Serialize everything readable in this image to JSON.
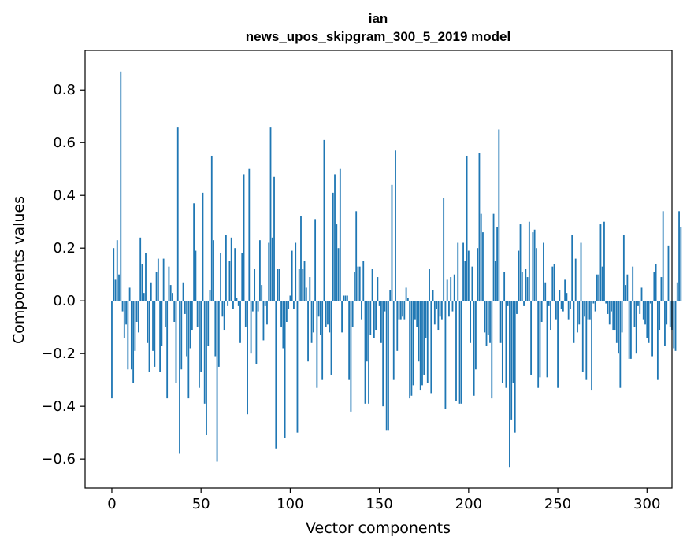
{
  "chart_data": {
    "type": "bar",
    "title_lines": [
      "ian",
      "news_upos_skipgram_300_5_2019 model"
    ],
    "xlabel": "Vector components",
    "ylabel": "Components values",
    "xlim": [
      -15,
      314
    ],
    "ylim": [
      -0.71,
      0.95
    ],
    "xticks": [
      0,
      50,
      100,
      150,
      200,
      250,
      300
    ],
    "yticks": [
      -0.6,
      -0.4,
      -0.2,
      0.0,
      0.2,
      0.4,
      0.6,
      0.8
    ],
    "ytick_labels": [
      "−0.6",
      "−0.4",
      "−0.2",
      "0.0",
      "0.2",
      "0.4",
      "0.6",
      "0.8"
    ],
    "bar_color": "#1f77b4",
    "grid": false,
    "values": [
      -0.37,
      0.2,
      0.08,
      0.23,
      0.1,
      0.87,
      -0.04,
      -0.14,
      -0.09,
      -0.26,
      0.05,
      -0.26,
      -0.31,
      -0.19,
      -0.08,
      -0.12,
      0.24,
      0.14,
      0.03,
      0.18,
      -0.16,
      -0.27,
      0.07,
      -0.19,
      -0.25,
      0.11,
      0.16,
      -0.27,
      -0.17,
      0.16,
      -0.1,
      -0.37,
      0.13,
      0.06,
      0.03,
      -0.08,
      -0.31,
      0.66,
      -0.58,
      -0.26,
      0.07,
      -0.05,
      -0.21,
      -0.37,
      -0.18,
      -0.11,
      0.37,
      0.19,
      -0.1,
      -0.33,
      -0.27,
      0.41,
      -0.39,
      -0.51,
      -0.17,
      0.04,
      0.55,
      0.23,
      -0.21,
      -0.61,
      -0.25,
      0.18,
      -0.06,
      -0.11,
      0.25,
      -0.02,
      0.15,
      0.24,
      -0.03,
      0.2,
      0.01,
      -0.02,
      -0.16,
      0.18,
      0.48,
      -0.1,
      -0.43,
      0.5,
      -0.2,
      -0.04,
      0.12,
      -0.24,
      -0.04,
      0.23,
      0.06,
      -0.15,
      -0.02,
      -0.09,
      0.22,
      0.66,
      0.24,
      0.47,
      -0.56,
      0.12,
      0.12,
      -0.1,
      -0.18,
      -0.52,
      -0.08,
      -0.03,
      0.02,
      0.19,
      -0.03,
      0.22,
      -0.5,
      0.12,
      0.32,
      0.12,
      0.15,
      0.05,
      -0.23,
      0.09,
      -0.16,
      -0.12,
      0.31,
      -0.33,
      -0.06,
      -0.13,
      -0.3,
      0.61,
      -0.1,
      -0.09,
      -0.12,
      -0.28,
      0.41,
      0.48,
      0.29,
      0.2,
      0.5,
      -0.12,
      0.02,
      0.02,
      0.02,
      -0.3,
      -0.42,
      -0.1,
      0.11,
      0.34,
      0.13,
      0.13,
      -0.07,
      0.15,
      -0.39,
      -0.23,
      -0.39,
      -0.13,
      0.12,
      -0.14,
      -0.11,
      0.09,
      -0.02,
      -0.16,
      -0.4,
      -0.04,
      -0.49,
      -0.49,
      0.04,
      0.44,
      -0.3,
      0.57,
      -0.19,
      -0.07,
      -0.07,
      -0.06,
      -0.07,
      0.05,
      0.01,
      -0.37,
      -0.36,
      -0.32,
      -0.07,
      -0.1,
      -0.23,
      -0.34,
      -0.32,
      -0.28,
      -0.14,
      -0.31,
      0.12,
      -0.35,
      0.04,
      -0.09,
      -0.03,
      -0.11,
      -0.06,
      -0.07,
      0.39,
      -0.41,
      0.08,
      -0.06,
      0.09,
      -0.04,
      0.1,
      -0.38,
      0.22,
      -0.39,
      -0.39,
      0.22,
      0.15,
      0.55,
      0.19,
      -0.16,
      0.13,
      -0.36,
      -0.26,
      0.2,
      0.56,
      0.33,
      0.26,
      -0.12,
      -0.17,
      -0.13,
      -0.16,
      -0.37,
      0.33,
      0.15,
      0.28,
      0.65,
      -0.16,
      -0.31,
      0.11,
      -0.33,
      -0.02,
      -0.63,
      -0.45,
      -0.31,
      -0.5,
      -0.05,
      0.19,
      0.29,
      0.11,
      -0.02,
      0.12,
      0.09,
      0.3,
      -0.28,
      0.26,
      0.27,
      0.2,
      -0.33,
      -0.29,
      -0.08,
      0.22,
      0.07,
      -0.29,
      -0.02,
      -0.11,
      0.13,
      0.14,
      -0.07,
      -0.33,
      0.04,
      -0.03,
      -0.04,
      0.08,
      0.03,
      -0.07,
      -0.03,
      0.25,
      -0.16,
      0.16,
      -0.12,
      -0.09,
      0.22,
      -0.27,
      -0.06,
      -0.3,
      -0.07,
      -0.07,
      -0.34,
      -0.01,
      -0.04,
      0.1,
      0.1,
      0.29,
      0.13,
      0.3,
      -0.01,
      -0.05,
      -0.09,
      -0.04,
      -0.11,
      -0.11,
      -0.16,
      -0.2,
      -0.33,
      -0.12,
      0.25,
      0.06,
      0.1,
      -0.22,
      -0.22,
      0.13,
      -0.1,
      -0.2,
      -0.02,
      -0.05,
      0.05,
      -0.07,
      -0.09,
      -0.14,
      -0.16,
      -0.01,
      -0.21,
      0.11,
      0.14,
      -0.3,
      -0.11,
      0.09,
      0.34,
      -0.17,
      -0.09,
      0.21,
      -0.1,
      -0.11,
      -0.18,
      -0.19,
      0.07,
      0.34,
      0.28
    ]
  }
}
